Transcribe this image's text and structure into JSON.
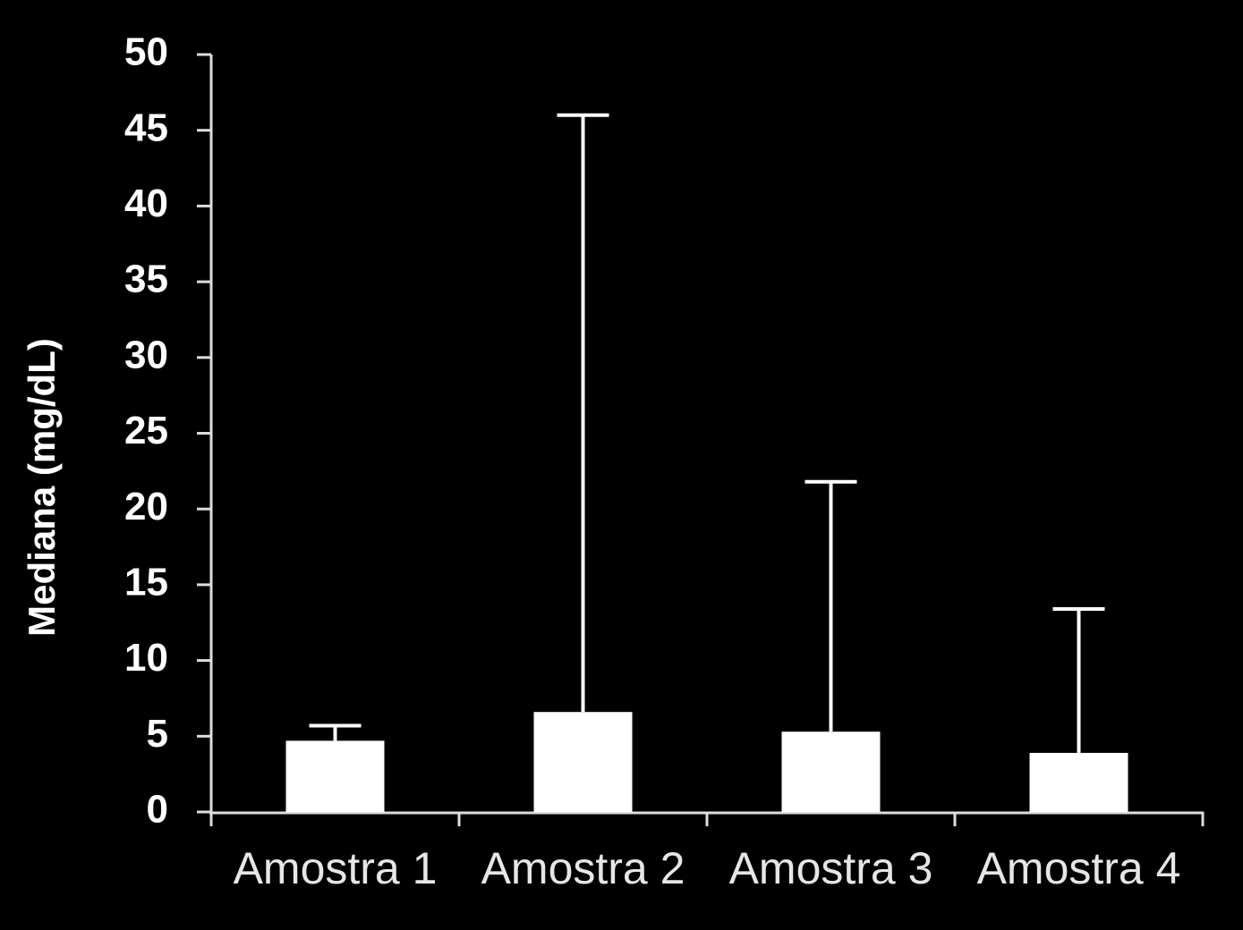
{
  "chart_data": {
    "type": "bar",
    "y_label": "Mediana (mg/dL)",
    "categories": [
      "Amostra 1",
      "Amostra 2",
      "Amostra 3",
      "Amostra 4"
    ],
    "values": [
      4.7,
      6.6,
      5.3,
      3.9
    ],
    "errors": [
      1.0,
      39.4,
      16.5,
      9.5
    ],
    "color": "#ffffff",
    "ylim": [
      0,
      50
    ],
    "yticks": [
      0,
      5,
      10,
      15,
      20,
      25,
      30,
      35,
      40,
      45,
      50
    ],
    "grid": false
  }
}
